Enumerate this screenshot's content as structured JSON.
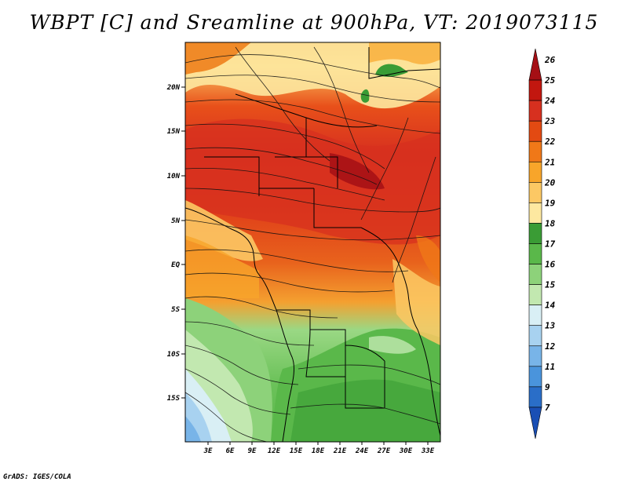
{
  "title": "WBPT [C] and Sreamline at 900hPa, VT: 2019073115",
  "credit": "GrADS: IGES/COLA",
  "map": {
    "lat_labels": [
      "20N",
      "15N",
      "10N",
      "5N",
      "EQ",
      "5S",
      "10S",
      "15S"
    ],
    "lon_labels": [
      "3E",
      "6E",
      "9E",
      "12E",
      "15E",
      "18E",
      "21E",
      "24E",
      "27E",
      "30E",
      "33E"
    ]
  },
  "colorbar": {
    "levels": [
      "26",
      "25",
      "24",
      "23",
      "22",
      "21",
      "20",
      "19",
      "18",
      "17",
      "16",
      "15",
      "14",
      "13",
      "12",
      "11",
      "9",
      "7"
    ],
    "colors": [
      "#a50f15",
      "#c2170f",
      "#d7301f",
      "#e34a12",
      "#f07818",
      "#f8a52a",
      "#fcc864",
      "#fde8a0",
      "#3a9c35",
      "#5ab84a",
      "#8dd27a",
      "#c2e8b0",
      "#d9eff5",
      "#a8d2f0",
      "#78b4e8",
      "#4a94dc",
      "#2a6ec8",
      "#1a4fb4"
    ]
  }
}
